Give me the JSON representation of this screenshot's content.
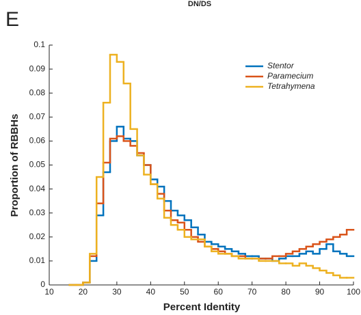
{
  "panel_label": "E",
  "chart_data": {
    "type": "histogram",
    "title": "DN/DS",
    "xlabel": "Percent Identity",
    "ylabel": "Proportion of RBBHs",
    "bins": [
      16,
      18,
      20,
      22,
      24,
      26,
      28,
      30,
      32,
      34,
      36,
      38,
      40,
      42,
      44,
      46,
      48,
      50,
      52,
      54,
      56,
      58,
      60,
      62,
      64,
      66,
      68,
      70,
      72,
      74,
      76,
      78,
      80,
      82,
      84,
      86,
      88,
      90,
      92,
      94,
      96,
      98,
      100
    ],
    "series": [
      {
        "name": "Stentor",
        "color": "#0072bd",
        "values": [
          0,
          0,
          0.001,
          0.01,
          0.029,
          0.047,
          0.06,
          0.066,
          0.061,
          0.06,
          0.054,
          0.05,
          0.044,
          0.041,
          0.035,
          0.031,
          0.029,
          0.027,
          0.024,
          0.021,
          0.018,
          0.017,
          0.016,
          0.015,
          0.014,
          0.013,
          0.012,
          0.012,
          0.011,
          0.011,
          0.01,
          0.011,
          0.012,
          0.012,
          0.013,
          0.014,
          0.013,
          0.015,
          0.017,
          0.014,
          0.013,
          0.012
        ]
      },
      {
        "name": "Paramecium",
        "color": "#d95319",
        "values": [
          0,
          0,
          0.001,
          0.012,
          0.034,
          0.051,
          0.061,
          0.062,
          0.06,
          0.058,
          0.055,
          0.05,
          0.042,
          0.038,
          0.031,
          0.027,
          0.026,
          0.023,
          0.02,
          0.018,
          0.016,
          0.015,
          0.014,
          0.013,
          0.012,
          0.012,
          0.011,
          0.011,
          0.011,
          0.011,
          0.012,
          0.012,
          0.013,
          0.014,
          0.015,
          0.016,
          0.017,
          0.018,
          0.019,
          0.02,
          0.021,
          0.023
        ]
      },
      {
        "name": "Tetrahymena",
        "color": "#edb120",
        "values": [
          0,
          0,
          0.001,
          0.013,
          0.045,
          0.076,
          0.096,
          0.093,
          0.084,
          0.065,
          0.054,
          0.046,
          0.042,
          0.036,
          0.028,
          0.025,
          0.023,
          0.02,
          0.019,
          0.019,
          0.016,
          0.014,
          0.013,
          0.013,
          0.012,
          0.011,
          0.011,
          0.011,
          0.01,
          0.01,
          0.01,
          0.009,
          0.009,
          0.008,
          0.009,
          0.008,
          0.007,
          0.006,
          0.005,
          0.004,
          0.003,
          0.003
        ]
      }
    ],
    "xlim": [
      10,
      100
    ],
    "xticks": [
      10,
      20,
      30,
      40,
      50,
      60,
      70,
      80,
      90,
      100
    ],
    "ylim": [
      0,
      0.1
    ],
    "yticks": [
      0,
      0.01,
      0.02,
      0.03,
      0.04,
      0.05,
      0.06,
      0.07,
      0.08,
      0.09,
      0.1
    ],
    "legend": "upper right"
  }
}
